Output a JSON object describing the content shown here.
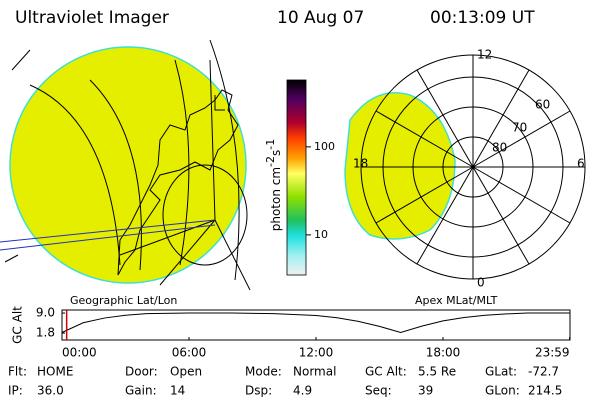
{
  "header": {
    "title": "Ultraviolet Imager",
    "date": "10 Aug 07",
    "time": "00:13:09 UT"
  },
  "left_map": {
    "label": "Geographic Lat/Lon"
  },
  "right_map": {
    "label": "Apex MLat/MLT",
    "mlt_labels": [
      "12",
      "18",
      "6",
      "0"
    ],
    "lat_labels": [
      "60",
      "70",
      "80"
    ]
  },
  "colorbar": {
    "label_parts": [
      "photon cm",
      "-2",
      "s",
      "-1"
    ],
    "scale": "log",
    "clim": [
      3.5,
      575
    ],
    "ticks": [
      10,
      100
    ]
  },
  "altitude_plot": {
    "type": "line",
    "ylabel": "GC Alt",
    "x": [
      0,
      1,
      2,
      3,
      4,
      6,
      8,
      10,
      12,
      13,
      14,
      15,
      16,
      17,
      18,
      19,
      20,
      21,
      22,
      24
    ],
    "values": [
      2.0,
      5.5,
      7.2,
      8.2,
      8.8,
      9.0,
      9.0,
      8.8,
      8.1,
      7.3,
      6.0,
      4.2,
      2.0,
      4.3,
      6.2,
      7.4,
      8.2,
      8.7,
      9.0,
      9.0
    ],
    "current_time": 0.22,
    "xlim": [
      0,
      24
    ],
    "xticks": [
      {
        "value": 0,
        "label": "00:00"
      },
      {
        "value": 6,
        "label": "06:00"
      },
      {
        "value": 12,
        "label": "12:00"
      },
      {
        "value": 18,
        "label": "18:00"
      },
      {
        "value": 23.98,
        "label": "23:59"
      }
    ],
    "ylim": [
      -0.7,
      10.1
    ],
    "yticks": [
      {
        "value": 9.0,
        "label": "9.0"
      },
      1.8
    ]
  },
  "status": [
    [
      {
        "label": "Flt:",
        "value": "HOME"
      },
      {
        "label": "Door:",
        "value": "Open"
      },
      {
        "label": "Mode:",
        "value": "Normal"
      },
      {
        "label": "GC Alt:",
        "value": "5.5 Re"
      },
      {
        "label": "GLat:",
        "value": "-72.7"
      }
    ],
    [
      {
        "label": "IP:",
        "value": "36.0"
      },
      {
        "label": "Gain:",
        "value": "14"
      },
      {
        "label": "Dsp:",
        "value": "4.9"
      },
      {
        "label": "Seq:",
        "value": "39"
      },
      {
        "label": "GLon:",
        "value": "214.5"
      }
    ]
  ]
}
